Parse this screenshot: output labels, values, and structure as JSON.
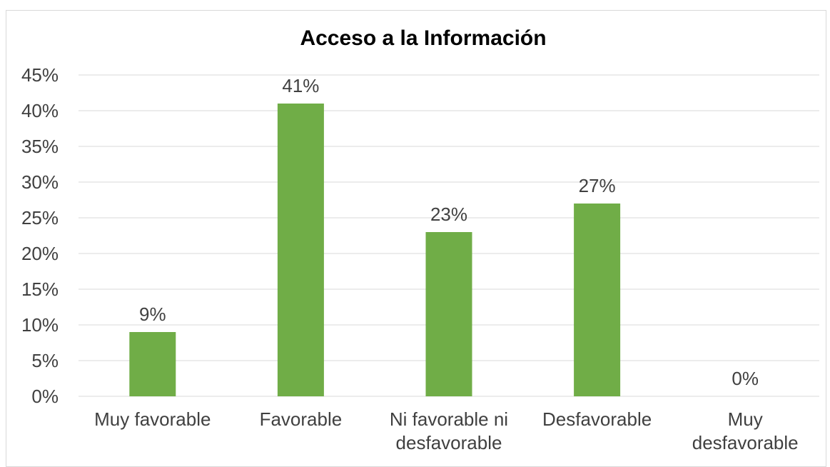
{
  "chart_data": {
    "type": "bar",
    "title": "Acceso a la Información",
    "categories": [
      [
        "Muy favorable"
      ],
      [
        "Favorable"
      ],
      [
        "Ni favorable ni",
        "desfavorable"
      ],
      [
        "Desfavorable"
      ],
      [
        "Muy",
        "desfavorable"
      ]
    ],
    "values": [
      9,
      41,
      23,
      27,
      0
    ],
    "data_labels": [
      "9%",
      "41%",
      "23%",
      "27%",
      "0%"
    ],
    "y_ticks": [
      "0%",
      "5%",
      "10%",
      "15%",
      "20%",
      "25%",
      "30%",
      "35%",
      "40%",
      "45%"
    ],
    "ylim": [
      0,
      45
    ],
    "grid": true,
    "bar_color": "#70ad47",
    "gridline_color": "#d9d9d9"
  }
}
